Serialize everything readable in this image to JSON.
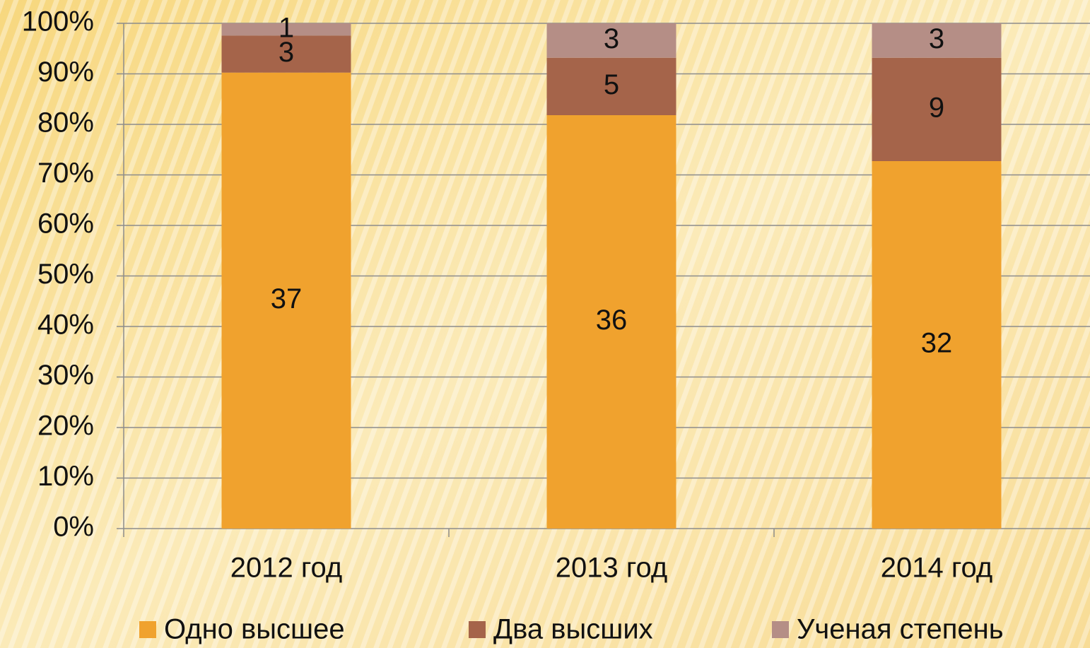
{
  "chart_data": {
    "type": "bar",
    "stack": "percent",
    "categories": [
      "2012 год",
      "2013 год",
      "2014 год"
    ],
    "series": [
      {
        "name": "Одно высшее",
        "color": "#f0a22e",
        "values": [
          37,
          36,
          32
        ]
      },
      {
        "name": "Два высших",
        "color": "#a5644a",
        "values": [
          3,
          5,
          9
        ]
      },
      {
        "name": "Ученая степень",
        "color": "#b58e86",
        "values": [
          1,
          3,
          3
        ]
      }
    ],
    "ylim": [
      0,
      100
    ],
    "yticks": [
      {
        "value": 0,
        "label": "0%"
      },
      {
        "value": 10,
        "label": "10%"
      },
      {
        "value": 20,
        "label": "20%"
      },
      {
        "value": 30,
        "label": "30%"
      },
      {
        "value": 40,
        "label": "40%"
      },
      {
        "value": 50,
        "label": "50%"
      },
      {
        "value": 60,
        "label": "60%"
      },
      {
        "value": 70,
        "label": "70%"
      },
      {
        "value": 80,
        "label": "80%"
      },
      {
        "value": 90,
        "label": "90%"
      },
      {
        "value": 100,
        "label": "100%"
      }
    ],
    "grid": true,
    "legend": "bottom"
  }
}
